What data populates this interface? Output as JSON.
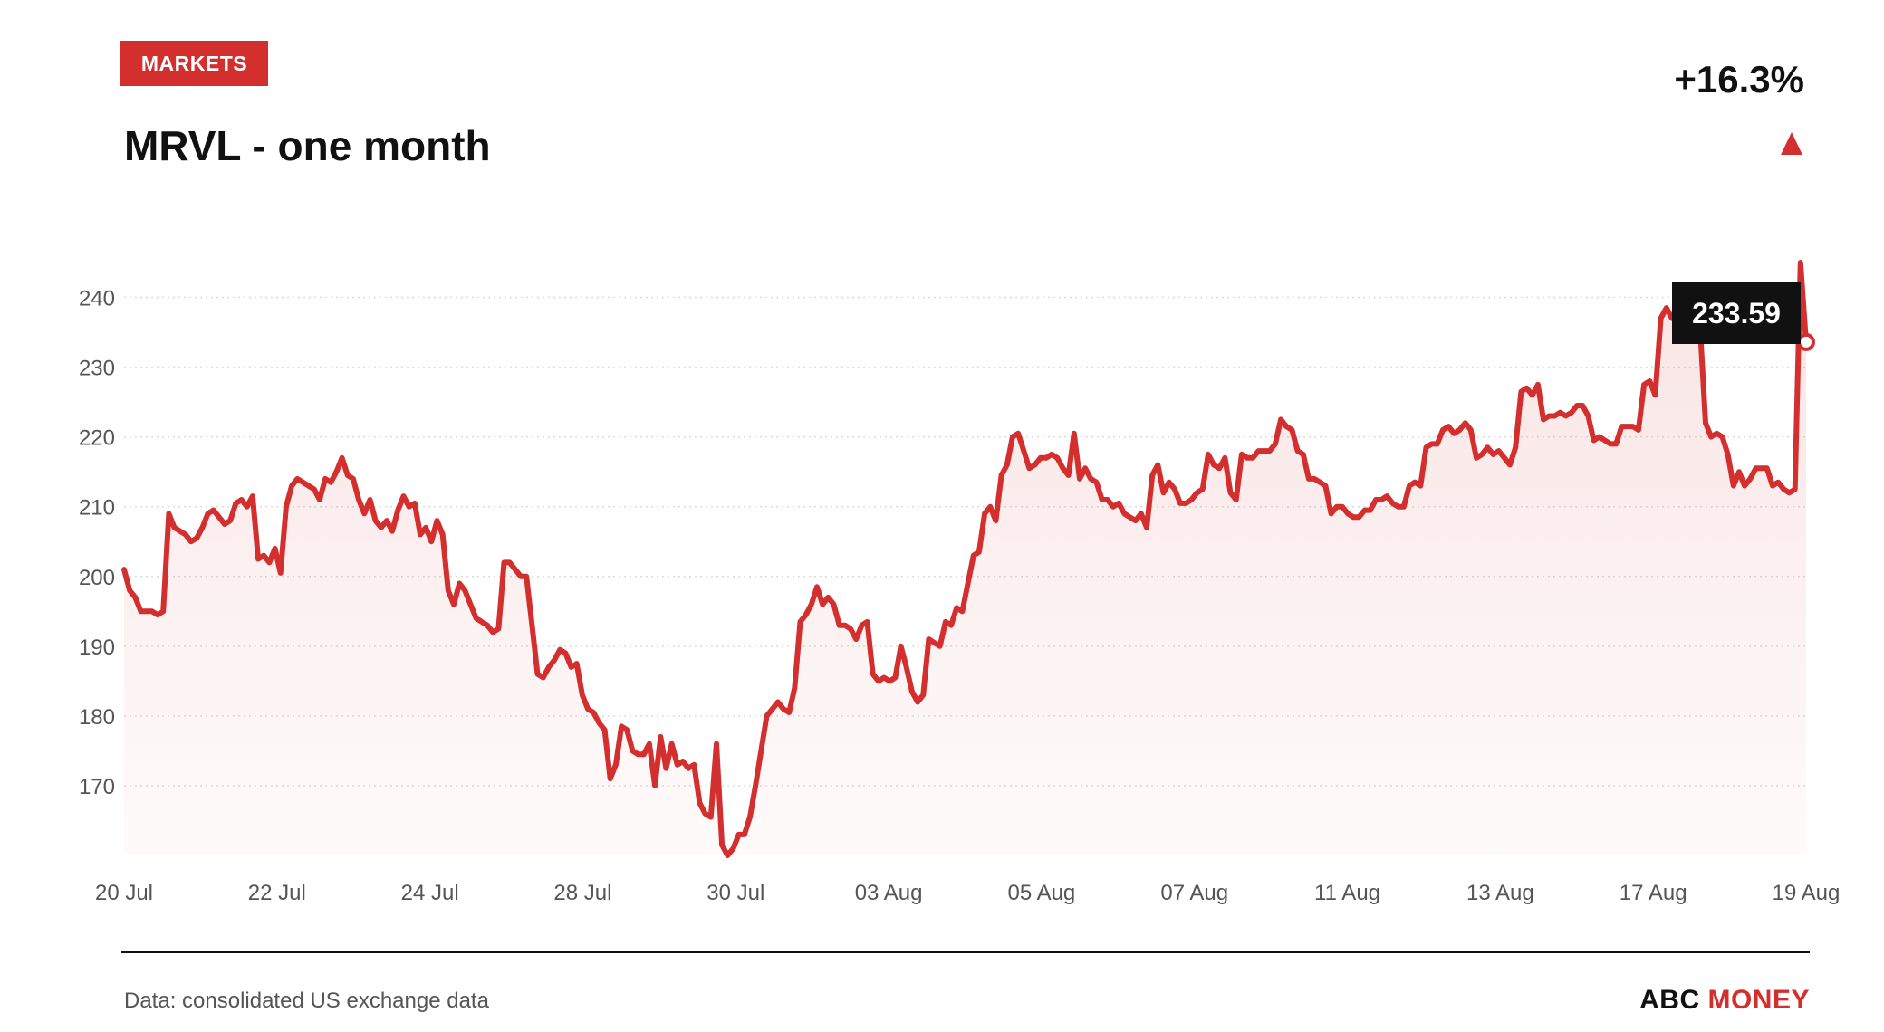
{
  "header": {
    "tag": "MARKETS",
    "title": "MRVL - one month",
    "change": "+16.3%",
    "direction_icon": "up-triangle-icon"
  },
  "colors": {
    "accent": "#d32f2f",
    "text": "#111111",
    "muted": "#555555",
    "grid": "#dddddd"
  },
  "chart_data": {
    "type": "area",
    "title": "MRVL - one month",
    "xlabel": "",
    "ylabel": "",
    "ylim": [
      160,
      245
    ],
    "yticks": [
      170,
      180,
      190,
      200,
      210,
      220,
      230,
      240
    ],
    "xticks": [
      "20 Jul",
      "22 Jul",
      "24 Jul",
      "28 Jul",
      "30 Jul",
      "03 Aug",
      "05 Aug",
      "07 Aug",
      "11 Aug",
      "13 Aug",
      "17 Aug",
      "19 Aug"
    ],
    "grid": "horizontal dotted",
    "last_value_label": "233.59",
    "series": [
      {
        "values": [
          201.0,
          198.0,
          197.0,
          195.0,
          195.0,
          195.0,
          194.5,
          195.0,
          209.0,
          207.0,
          206.5,
          206.0,
          205.0,
          205.5,
          207.0,
          209.0,
          209.5,
          208.5,
          207.5,
          208.0,
          210.5,
          211.0,
          210.0,
          211.5,
          202.5,
          203.0,
          202.0,
          204.0,
          200.5,
          210.0,
          213.0,
          214.0,
          213.5,
          213.0,
          212.5,
          211.0,
          214.0,
          213.5,
          215.0,
          217.0,
          214.5,
          214.0,
          211.0,
          209.0,
          211.0,
          208.0,
          207.0,
          208.0,
          206.5,
          209.5,
          211.5,
          210.0,
          210.5,
          206.0,
          207.0,
          205.0,
          208.0,
          206.0,
          198.0,
          196.0,
          199.0,
          198.0,
          196.0,
          194.0,
          193.5,
          193.0,
          192.0,
          192.5,
          202.0,
          202.0,
          201.0,
          200.0,
          200.0,
          193.0,
          186.0,
          185.5,
          187.0,
          188.0,
          189.5,
          189.0,
          187.0,
          187.5,
          183.0,
          181.0,
          180.5,
          179.0,
          178.0,
          171.0,
          173.0,
          178.5,
          178.0,
          175.0,
          174.5,
          174.5,
          176.0,
          170.0,
          177.0,
          172.5,
          176.0,
          173.0,
          173.5,
          172.5,
          173.0,
          167.5,
          166.0,
          165.5,
          176.0,
          161.5,
          160.0,
          161.0,
          163.0,
          163.0,
          165.5,
          170.0,
          175.0,
          180.0,
          181.0,
          182.0,
          181.0,
          180.5,
          184.0,
          193.5,
          194.5,
          196.0,
          198.5,
          196.0,
          197.0,
          196.0,
          193.0,
          193.0,
          192.5,
          191.0,
          193.0,
          193.5,
          186.0,
          185.0,
          185.5,
          185.0,
          185.5,
          190.0,
          187.0,
          183.5,
          182.0,
          183.0,
          191.0,
          190.5,
          190.0,
          193.5,
          193.0,
          195.5,
          195.0,
          199.0,
          203.0,
          203.5,
          209.0,
          210.0,
          208.0,
          214.5,
          216.0,
          220.0,
          220.5,
          218.0,
          215.5,
          216.0,
          217.0,
          217.0,
          217.5,
          217.0,
          215.5,
          214.5,
          220.5,
          214.0,
          215.5,
          214.0,
          213.5,
          211.0,
          211.0,
          210.0,
          210.5,
          209.0,
          208.5,
          208.0,
          209.0,
          207.0,
          214.5,
          216.0,
          212.0,
          213.5,
          212.5,
          210.5,
          210.5,
          211.0,
          212.0,
          212.5,
          217.5,
          216.0,
          215.5,
          217.0,
          212.0,
          211.0,
          217.5,
          217.0,
          217.0,
          218.0,
          218.0,
          218.0,
          219.0,
          222.5,
          221.5,
          221.0,
          218.0,
          217.5,
          214.0,
          214.0,
          213.5,
          213.0,
          209.0,
          210.0,
          210.0,
          209.0,
          208.5,
          208.5,
          209.5,
          209.5,
          211.0,
          211.0,
          211.5,
          210.5,
          210.0,
          210.0,
          213.0,
          213.5,
          213.0,
          218.5,
          219.0,
          219.0,
          221.0,
          221.5,
          220.5,
          221.0,
          222.0,
          221.0,
          217.0,
          217.5,
          218.5,
          217.5,
          218.0,
          217.0,
          216.0,
          218.5,
          226.5,
          227.0,
          226.0,
          227.5,
          222.5,
          223.0,
          223.0,
          223.5,
          223.0,
          223.5,
          224.5,
          224.5,
          223.0,
          219.5,
          220.0,
          219.5,
          219.0,
          219.0,
          221.5,
          221.5,
          221.5,
          221.0,
          227.5,
          228.0,
          226.0,
          237.0,
          238.5,
          237.0,
          237.5,
          235.5,
          234.5,
          236.0,
          236.0,
          222.0,
          220.0,
          220.5,
          220.0,
          217.5,
          213.0,
          215.0,
          213.0,
          214.0,
          215.5,
          215.5,
          215.5,
          213.0,
          213.5,
          212.5,
          212.0,
          212.5,
          245.0,
          233.59
        ]
      }
    ]
  },
  "footer": {
    "source": "Data: consolidated US exchange data",
    "brand_abc": "ABC",
    "brand_money": "MONEY"
  }
}
